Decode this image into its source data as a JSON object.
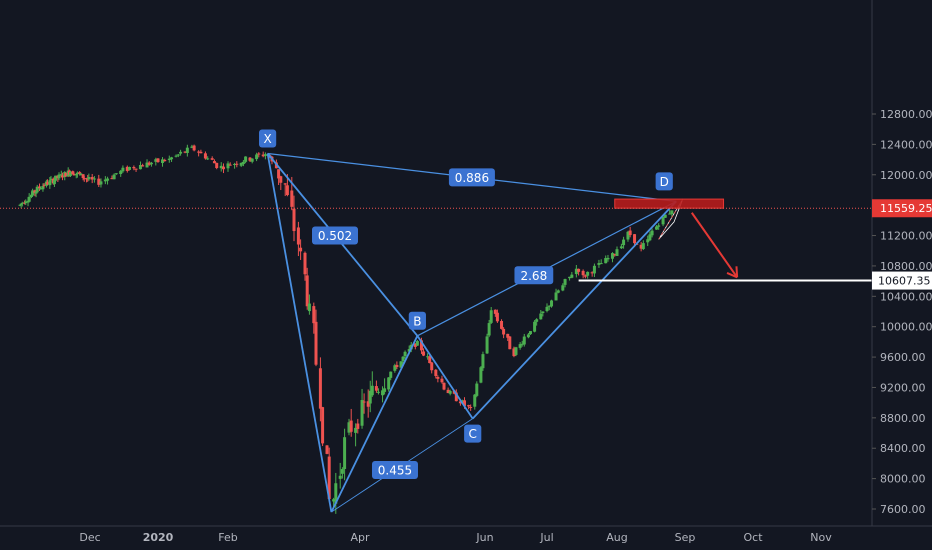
{
  "chart_data": {
    "type": "candlestick",
    "ylim": [
      7400,
      13000
    ],
    "y_ticks": [
      7600,
      8000,
      8400,
      8800,
      9200,
      9600,
      10000,
      10400,
      10800,
      11200,
      11600,
      12000,
      12400,
      12800
    ],
    "y_tick_labels": [
      "7600.00",
      "8000.00",
      "8400.00",
      "8800.00",
      "9200.00",
      "9600.00",
      "10000.00",
      "10400.00",
      "10800.00",
      "11200.00",
      "11600.00",
      "12000.00",
      "12400.00",
      "12800.00"
    ],
    "x_labels": [
      "Dec",
      "2020",
      "Feb",
      "Apr",
      "Jun",
      "Jul",
      "Aug",
      "Sep",
      "Oct",
      "Nov"
    ],
    "current_price": "11559.25",
    "current_price_value": 11559.25,
    "support_price": "10607.35",
    "support_price_value": 10607.35,
    "colors": {
      "background": "#131722",
      "up": "#4caf50",
      "down": "#ef5350",
      "pattern": "#4a90e2",
      "label_bg": "#3b73d1",
      "target_zone": "#b71c1c",
      "arrow": "#e53935",
      "axis_text": "#b2b5be",
      "price_line": "#ef5350"
    },
    "pattern_points": [
      {
        "label": "X",
        "x": "2020-02-19",
        "y": 12280
      },
      {
        "label": "B",
        "x": "2020-04-29",
        "y": 9880
      },
      {
        "label": "C",
        "x": "2020-05-26",
        "y": 8790
      },
      {
        "label": "D",
        "x": "2020-08-28",
        "y": 11650
      }
    ],
    "pattern_low": {
      "x": "2020-03-19",
      "y": 7560
    },
    "ratios": [
      "0.886",
      "0.502",
      "2.68",
      "0.455"
    ],
    "target_zone_price": [
      11560,
      11680
    ],
    "projection_target": {
      "x": "2020-09-24",
      "y": 10650
    }
  }
}
